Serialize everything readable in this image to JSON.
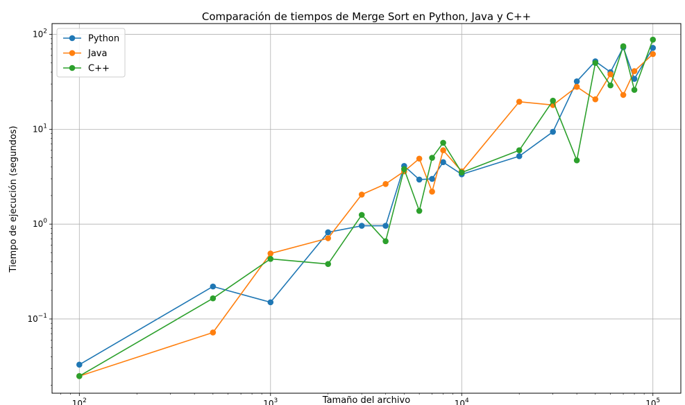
{
  "chart_data": {
    "type": "line",
    "title": "Comparación de tiempos de Merge Sort en Python, Java y C++",
    "xlabel": "Tamaño del archivo",
    "ylabel": "Tiempo de ejecución (segundos)",
    "xscale": "log",
    "yscale": "log",
    "xlim": [
      72,
      140000
    ],
    "ylim": [
      0.0165,
      130
    ],
    "grid": true,
    "legend_position": "top-left",
    "x_ticks": [
      {
        "value": 100,
        "base": "10",
        "exp": "2"
      },
      {
        "value": 1000,
        "base": "10",
        "exp": "3"
      },
      {
        "value": 10000,
        "base": "10",
        "exp": "4"
      },
      {
        "value": 100000,
        "base": "10",
        "exp": "5"
      }
    ],
    "y_ticks": [
      {
        "value": 0.1,
        "base": "10",
        "exp": "−1"
      },
      {
        "value": 1,
        "base": "10",
        "exp": "0"
      },
      {
        "value": 10,
        "base": "10",
        "exp": "1"
      },
      {
        "value": 100,
        "base": "10",
        "exp": "2"
      }
    ],
    "x": [
      100,
      500,
      1000,
      2000,
      3000,
      4000,
      5000,
      6000,
      7000,
      8000,
      10000,
      20000,
      30000,
      40000,
      50000,
      60000,
      70000,
      80000,
      100000
    ],
    "series": [
      {
        "name": "Python",
        "color": "#1f77b4",
        "values": [
          0.033,
          0.22,
          0.15,
          0.82,
          0.96,
          0.96,
          4.1,
          2.95,
          3.0,
          4.5,
          3.35,
          5.2,
          9.4,
          32,
          52,
          40,
          73,
          34,
          72
        ]
      },
      {
        "name": "Java",
        "color": "#ff7f0e",
        "values": [
          0.025,
          0.072,
          0.49,
          0.71,
          2.05,
          2.65,
          3.6,
          4.9,
          2.2,
          6.0,
          3.6,
          19.5,
          18,
          28,
          20.7,
          38,
          23,
          41,
          62
        ]
      },
      {
        "name": "C++",
        "color": "#2ca02c",
        "values": [
          0.025,
          0.165,
          0.43,
          0.38,
          1.25,
          0.66,
          3.8,
          1.38,
          5.0,
          7.2,
          3.5,
          6.0,
          20,
          4.7,
          50,
          29,
          75,
          26,
          88
        ]
      }
    ]
  }
}
